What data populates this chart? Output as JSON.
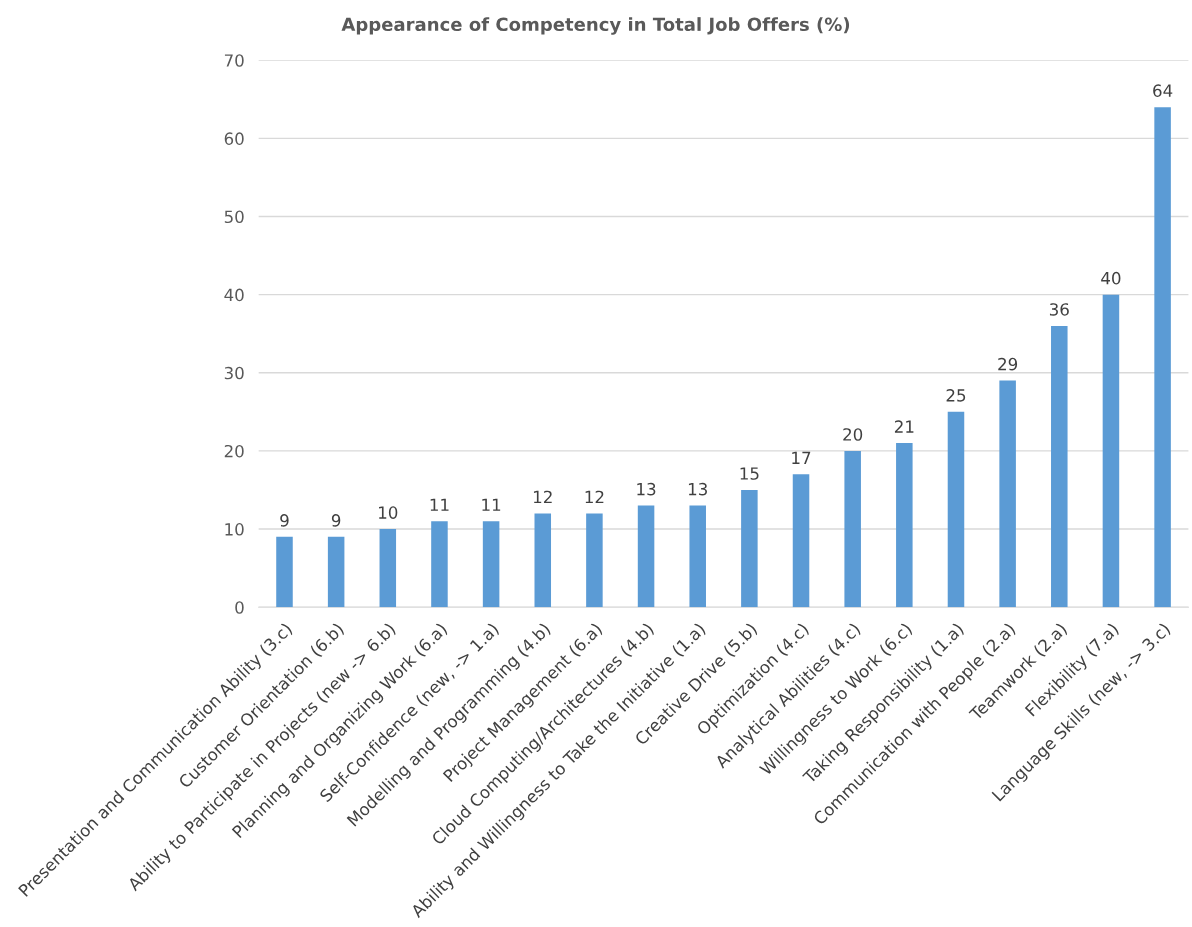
{
  "chart_data": {
    "type": "bar",
    "title": "Appearance of Competency in Total Job Offers (%)",
    "categories": [
      "Presentation and Communication Ability (3.c)",
      "Customer Orientation (6.b)",
      "Ability to Participate in Projects (new -> 6.b)",
      "Planning and Organizing Work (6.a)",
      "Self-Confidence (new, -> 1.a)",
      "Modelling and Programming (4.b)",
      "Project Management (6.a)",
      "Cloud Computing/Architectures (4.b)",
      "Ability and Willingness to Take the Initiative (1.a)",
      "Creative Drive (5.b)",
      "Optimization (4.c)",
      "Analytical Abilities (4.c)",
      "Willingness to Work (6.c)",
      "Taking Responsibility (1.a)",
      "Communication with People (2.a)",
      "Teamwork (2.a)",
      "Flexibility (7.a)",
      "Language Skills (new, -> 3.c)"
    ],
    "values": [
      9,
      9,
      10,
      11,
      11,
      12,
      12,
      13,
      13,
      15,
      17,
      20,
      21,
      25,
      29,
      36,
      40,
      64
    ],
    "color": "#5b9bd5",
    "ylim": [
      0,
      70
    ],
    "yticks": [
      0,
      10,
      20,
      30,
      40,
      50,
      60,
      70
    ],
    "grid": "y",
    "data_labels": true
  }
}
